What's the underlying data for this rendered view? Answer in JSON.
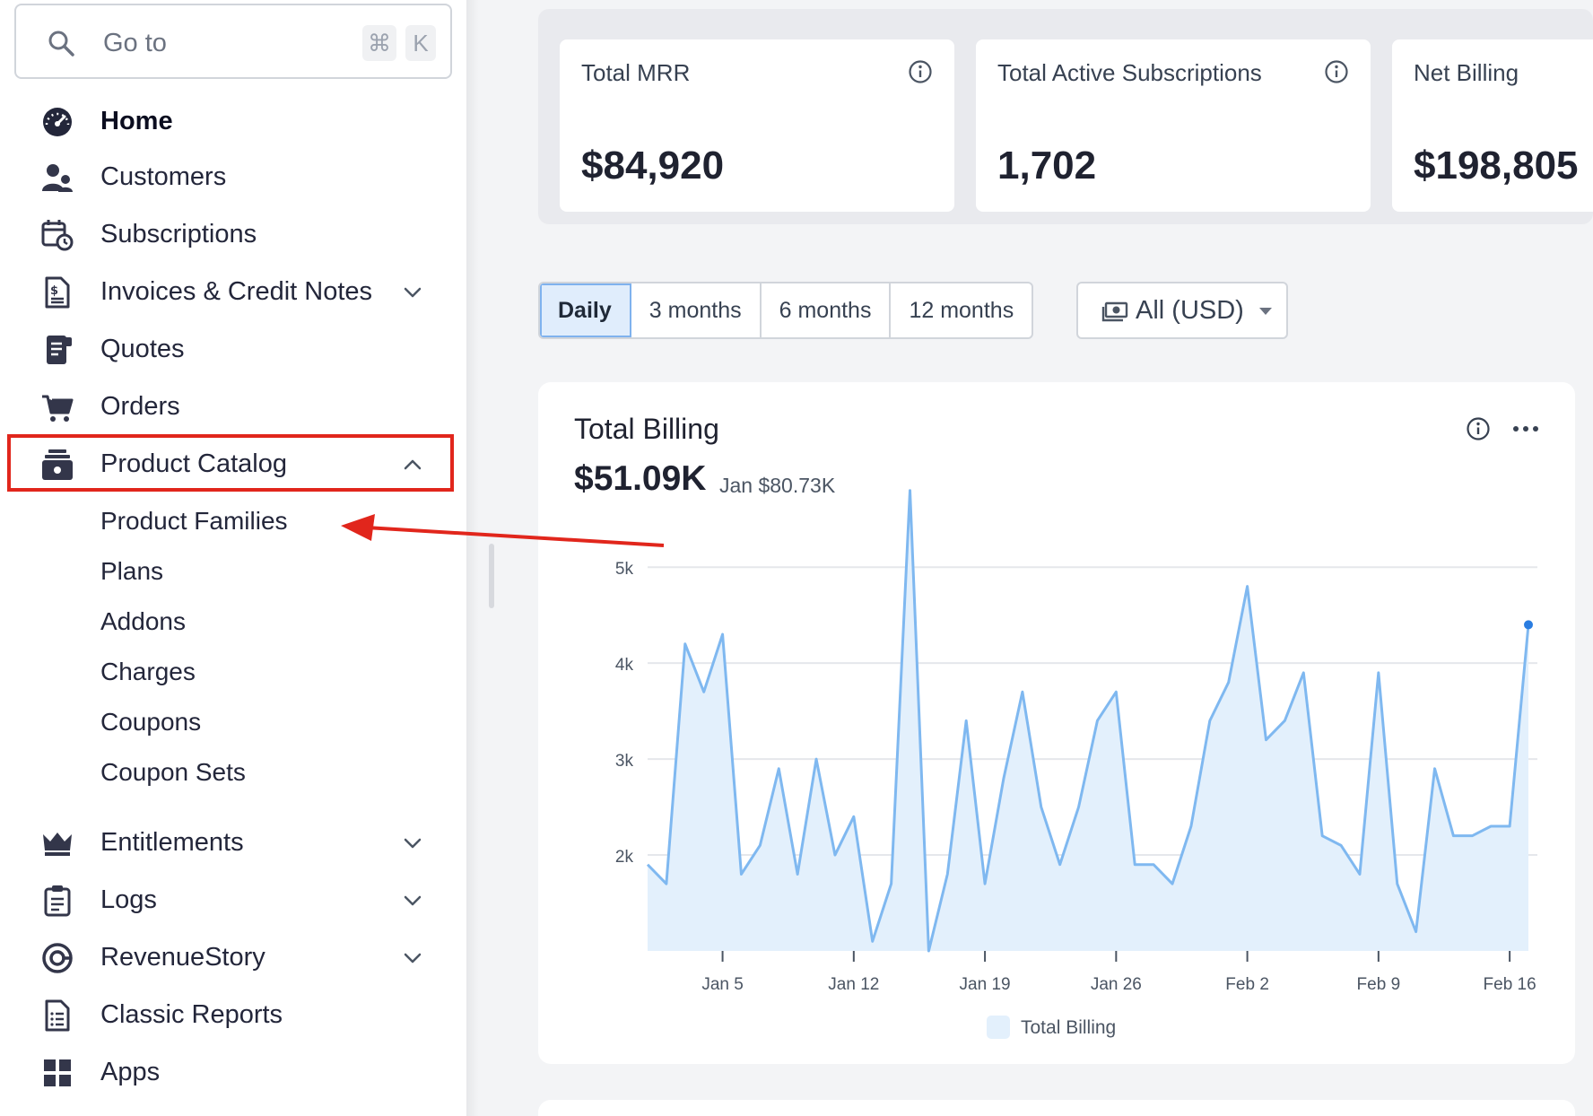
{
  "search": {
    "placeholder": "Go to",
    "shortcut_key1": "⌘",
    "shortcut_key2": "K"
  },
  "sidebar": {
    "items": [
      {
        "label": "Home",
        "icon": "speedometer-icon"
      },
      {
        "label": "Customers",
        "icon": "users-icon"
      },
      {
        "label": "Subscriptions",
        "icon": "calendar-clock-icon"
      },
      {
        "label": "Invoices & Credit Notes",
        "icon": "invoice-icon",
        "expandable": true
      },
      {
        "label": "Quotes",
        "icon": "quote-document-icon"
      },
      {
        "label": "Orders",
        "icon": "cart-icon"
      },
      {
        "label": "Product Catalog",
        "icon": "catalog-box-icon",
        "expandable": true,
        "expanded": true
      },
      {
        "label": "Entitlements",
        "icon": "crown-icon",
        "expandable": true
      },
      {
        "label": "Logs",
        "icon": "clipboard-icon",
        "expandable": true
      },
      {
        "label": "RevenueStory",
        "icon": "revenue-story-icon",
        "expandable": true
      },
      {
        "label": "Classic Reports",
        "icon": "report-icon"
      },
      {
        "label": "Apps",
        "icon": "apps-grid-icon"
      }
    ],
    "catalog_subitems": [
      "Product Families",
      "Plans",
      "Addons",
      "Charges",
      "Coupons",
      "Coupon Sets"
    ]
  },
  "kpis": [
    {
      "title": "Total MRR",
      "value": "$84,920"
    },
    {
      "title": "Total Active Subscriptions",
      "value": "1,702"
    },
    {
      "title": "Net Billing",
      "value": "$198,805"
    }
  ],
  "periods": [
    "Daily",
    "3 months",
    "6 months",
    "12 months"
  ],
  "selected_period": "Daily",
  "currency": "All (USD)",
  "chart_card": {
    "title": "Total Billing",
    "value": "$51.09K",
    "subtitle": "Jan $80.73K"
  },
  "chart_data": {
    "type": "area",
    "title": "Total Billing",
    "legend": [
      "Total Billing"
    ],
    "legend_placement": "bottom-center",
    "grid": true,
    "ylim": [
      1000,
      5900
    ],
    "y_ticks": [
      2000,
      3000,
      4000,
      5000
    ],
    "y_tick_labels": [
      "2k",
      "3k",
      "4k",
      "5k"
    ],
    "x_tick_labels": [
      "Jan 5",
      "Jan 12",
      "Jan 19",
      "Jan 26",
      "Feb 2",
      "Feb 9",
      "Feb 16"
    ],
    "x_tick_indices": [
      4,
      11,
      18,
      25,
      32,
      39,
      46
    ],
    "series": [
      {
        "name": "Total Billing",
        "color": "#7fb8f0",
        "fill": "#e3f0fc",
        "values": [
          1900,
          1700,
          4200,
          3700,
          4300,
          1800,
          2100,
          2900,
          1800,
          3000,
          2000,
          2400,
          1100,
          1700,
          5800,
          1000,
          1800,
          3400,
          1700,
          2800,
          3700,
          2500,
          1900,
          2500,
          3400,
          3700,
          1900,
          1900,
          1700,
          2300,
          3400,
          3800,
          4800,
          3200,
          3400,
          3900,
          2200,
          2100,
          1800,
          3900,
          1700,
          1200,
          2900,
          2200,
          2200,
          2300,
          2300,
          4400
        ]
      }
    ],
    "highlight_index": 47
  },
  "colors": {
    "accent": "#2a7de1",
    "annotation_red": "#e1261c",
    "series_line": "#7fb8f0",
    "series_fill": "#e3f0fc"
  }
}
